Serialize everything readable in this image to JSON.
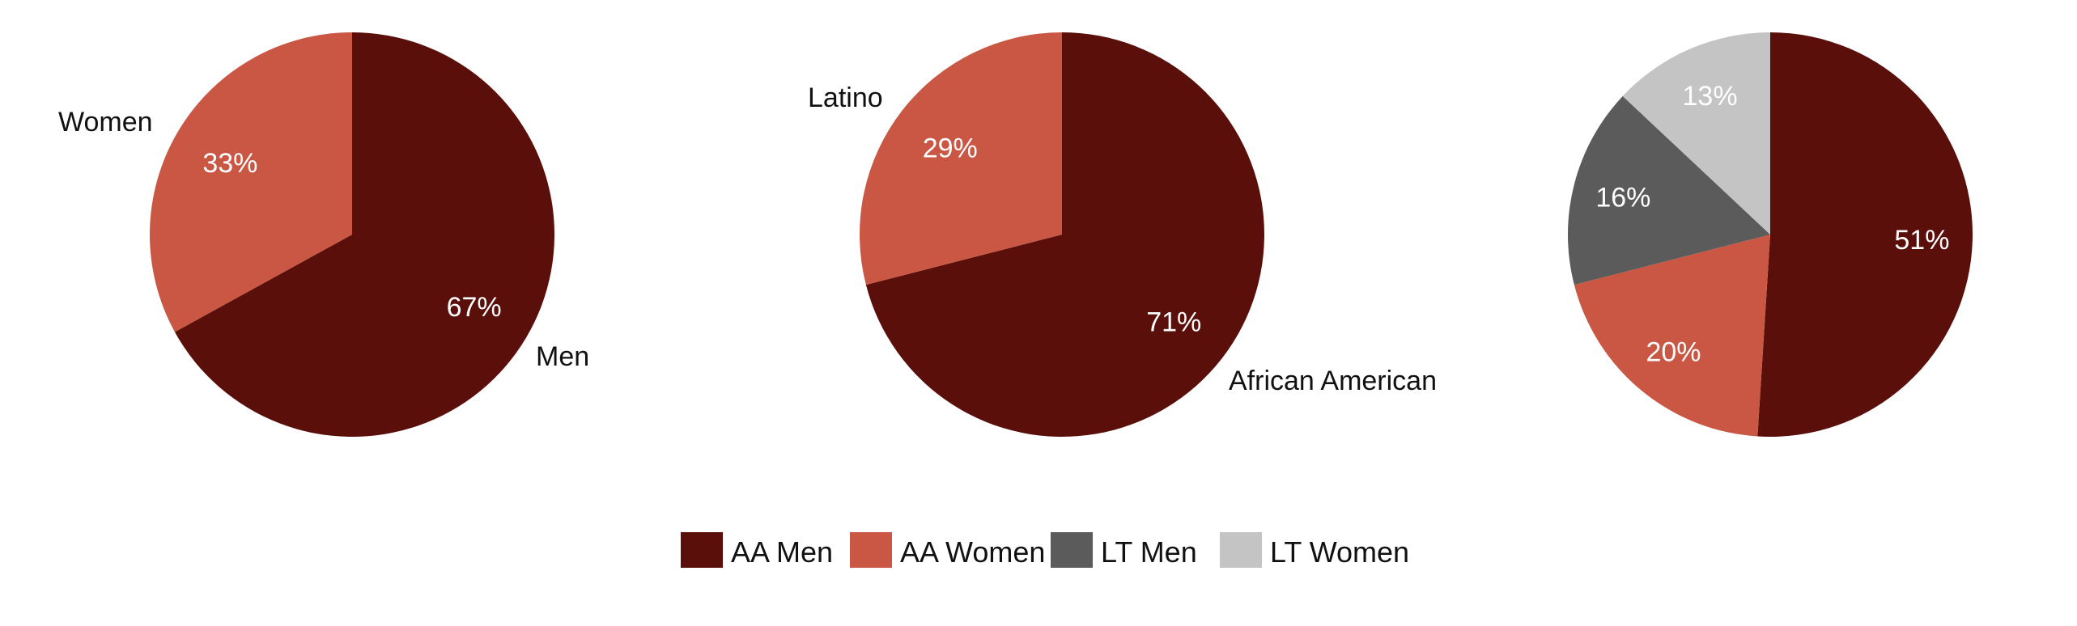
{
  "chart_data": [
    {
      "type": "pie",
      "slices": [
        {
          "label": "Men",
          "value": 67,
          "value_label": "67%",
          "color": "#5a0f0a"
        },
        {
          "label": "Women",
          "value": 33,
          "value_label": "33%",
          "color": "#c95744"
        }
      ]
    },
    {
      "type": "pie",
      "slices": [
        {
          "label": "African American",
          "value": 71,
          "value_label": "71%",
          "color": "#5a0f0a"
        },
        {
          "label": "Latino",
          "value": 29,
          "value_label": "29%",
          "color": "#c95744"
        }
      ]
    },
    {
      "type": "pie",
      "slices": [
        {
          "label": "AA Men",
          "value": 51,
          "value_label": "51%",
          "color": "#5a0f0a"
        },
        {
          "label": "AA Women",
          "value": 20,
          "value_label": "20%",
          "color": "#c95744"
        },
        {
          "label": "LT Men",
          "value": 16,
          "value_label": "16%",
          "color": "#5b5b5b"
        },
        {
          "label": "LT Women",
          "value": 13,
          "value_label": "13%",
          "color": "#c4c4c4"
        }
      ]
    }
  ],
  "legend": {
    "placement": "bottom-center",
    "items": [
      {
        "label": "AA Men",
        "color": "#5a0f0a"
      },
      {
        "label": "AA Women",
        "color": "#c95744"
      },
      {
        "label": "LT Men",
        "color": "#5b5b5b"
      },
      {
        "label": "LT Women",
        "color": "#c4c4c4"
      }
    ]
  }
}
